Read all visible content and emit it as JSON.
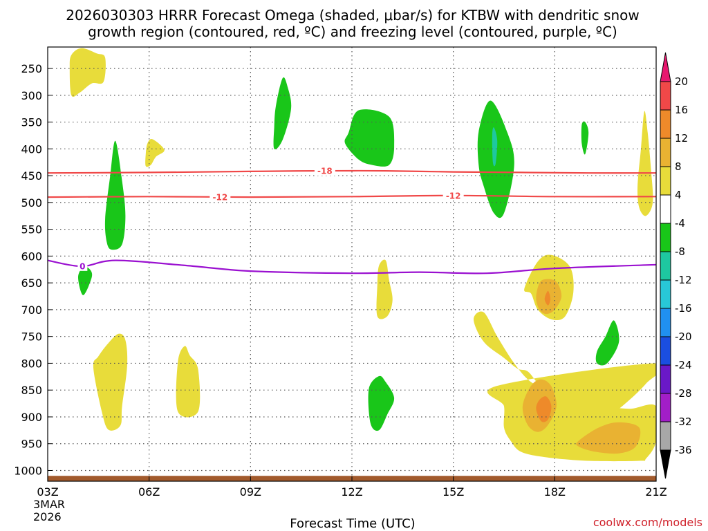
{
  "chart_data": {
    "type": "heatmap",
    "title_line1": "2026030303 HRRR Forecast Omega (shaded, μbar/s) for KTBW with dendritic snow",
    "title_line2": "growth region (contoured, red, ºC) and freezing level (contoured, purple, ºC)",
    "xlabel": "Forecast Time (UTC)",
    "credit": "coolwx.com/models",
    "x_range_hours": [
      0,
      18
    ],
    "y_range_mb": [
      210,
      1020
    ],
    "x_ticks": [
      {
        "hour": 0,
        "label": "03Z"
      },
      {
        "hour": 3,
        "label": "06Z"
      },
      {
        "hour": 6,
        "label": "09Z"
      },
      {
        "hour": 9,
        "label": "12Z"
      },
      {
        "hour": 12,
        "label": "15Z"
      },
      {
        "hour": 15,
        "label": "18Z"
      },
      {
        "hour": 18,
        "label": "21Z"
      }
    ],
    "x_date_lines": [
      "3MAR",
      "2026"
    ],
    "y_ticks": [
      250,
      300,
      350,
      400,
      450,
      500,
      550,
      600,
      650,
      700,
      750,
      800,
      850,
      900,
      950,
      1000
    ],
    "colorbar": {
      "labels": [
        "20",
        "16",
        "12",
        "8",
        "4",
        "-4",
        "-8",
        "-12",
        "-16",
        "-20",
        "-24",
        "-28",
        "-32",
        "-36"
      ],
      "colors": [
        "#e8176f",
        "#f04848",
        "#ee8a2a",
        "#e9b232",
        "#e8dc3a",
        "#ffffff",
        "#19c619",
        "#1ec8a0",
        "#28c8d8",
        "#2090f0",
        "#1a4ee0",
        "#6a18c8",
        "#a21ec8",
        "#a8a8a8",
        "#000000"
      ]
    },
    "contours": [
      {
        "name": "dgz-minus18",
        "label": "-18",
        "color": "#f04848",
        "points": [
          [
            0,
            445
          ],
          [
            3,
            444
          ],
          [
            6,
            442
          ],
          [
            8,
            441
          ],
          [
            10,
            441
          ],
          [
            12,
            443
          ],
          [
            14,
            444
          ],
          [
            16,
            445
          ],
          [
            18,
            445
          ]
        ],
        "labels_at_hours": [
          8.2
        ]
      },
      {
        "name": "dgz-minus12",
        "label": "-12",
        "color": "#f04848",
        "points": [
          [
            0,
            490
          ],
          [
            3,
            489
          ],
          [
            6,
            490
          ],
          [
            9,
            489
          ],
          [
            12,
            487
          ],
          [
            15,
            489
          ],
          [
            18,
            489
          ]
        ],
        "labels_at_hours": [
          5.1,
          12.0
        ]
      },
      {
        "name": "freezing-level",
        "label": "0",
        "color": "#9a10d0",
        "points": [
          [
            0,
            608
          ],
          [
            1,
            619
          ],
          [
            2,
            608
          ],
          [
            4,
            617
          ],
          [
            6,
            628
          ],
          [
            9,
            632
          ],
          [
            11,
            630
          ],
          [
            13,
            632
          ],
          [
            15,
            623
          ],
          [
            18,
            616
          ]
        ],
        "labels_at_hours": [
          1.03
        ]
      }
    ],
    "omega_regions": [
      {
        "value": 4,
        "color": "#e8dc3a",
        "points": [
          [
            0.7,
            300
          ],
          [
            0.95,
            295
          ],
          [
            1.3,
            278
          ],
          [
            1.65,
            275
          ],
          [
            1.7,
            230
          ],
          [
            1.45,
            222
          ],
          [
            1.0,
            212
          ],
          [
            0.7,
            225
          ],
          [
            0.65,
            250
          ]
        ]
      },
      {
        "value": -8,
        "color": "#19c619",
        "points": [
          [
            1.75,
            575
          ],
          [
            1.9,
            588
          ],
          [
            2.2,
            578
          ],
          [
            2.3,
            525
          ],
          [
            2.2,
            460
          ],
          [
            2.0,
            385
          ],
          [
            1.85,
            450
          ],
          [
            1.7,
            530
          ]
        ]
      },
      {
        "value": 4,
        "color": "#e8dc3a",
        "points": [
          [
            2.9,
            432
          ],
          [
            3.05,
            430
          ],
          [
            3.2,
            415
          ],
          [
            3.45,
            402
          ],
          [
            3.1,
            382
          ],
          [
            2.95,
            390
          ],
          [
            2.9,
            410
          ]
        ]
      },
      {
        "value": -8,
        "color": "#19c619",
        "points": [
          [
            1.05,
            673
          ],
          [
            1.3,
            640
          ],
          [
            1.25,
            625
          ],
          [
            1.05,
            620
          ],
          [
            0.9,
            640
          ]
        ]
      },
      {
        "value": 4,
        "color": "#e8dc3a",
        "points": [
          [
            1.35,
            808
          ],
          [
            1.6,
            890
          ],
          [
            1.8,
            924
          ],
          [
            2.15,
            916
          ],
          [
            2.2,
            880
          ],
          [
            2.35,
            805
          ],
          [
            2.3,
            757
          ],
          [
            2.1,
            745
          ],
          [
            1.8,
            762
          ],
          [
            1.5,
            787
          ]
        ]
      },
      {
        "value": 4,
        "color": "#e8dc3a",
        "points": [
          [
            3.85,
            890
          ],
          [
            4.45,
            890
          ],
          [
            4.45,
            812
          ],
          [
            4.2,
            785
          ],
          [
            4.05,
            768
          ],
          [
            3.85,
            798
          ]
        ]
      },
      {
        "value": -8,
        "color": "#19c619",
        "points": [
          [
            6.7,
            400
          ],
          [
            6.95,
            383
          ],
          [
            7.2,
            325
          ],
          [
            7.1,
            285
          ],
          [
            6.95,
            268
          ],
          [
            6.75,
            320
          ],
          [
            6.7,
            360
          ]
        ]
      },
      {
        "value": -8,
        "color": "#19c619",
        "points": [
          [
            8.8,
            390
          ],
          [
            9.2,
            420
          ],
          [
            9.6,
            430
          ],
          [
            10.1,
            430
          ],
          [
            10.25,
            395
          ],
          [
            10.1,
            340
          ],
          [
            9.2,
            328
          ],
          [
            8.9,
            370
          ]
        ]
      },
      {
        "value": 4,
        "color": "#e8dc3a",
        "points": [
          [
            9.75,
            712
          ],
          [
            10.05,
            712
          ],
          [
            10.2,
            682
          ],
          [
            10.1,
            645
          ],
          [
            10.0,
            608
          ],
          [
            9.8,
            618
          ],
          [
            9.75,
            655
          ]
        ]
      },
      {
        "value": -8,
        "color": "#19c619",
        "points": [
          [
            9.55,
            912
          ],
          [
            9.8,
            925
          ],
          [
            10.05,
            895
          ],
          [
            10.25,
            865
          ],
          [
            10.0,
            835
          ],
          [
            9.8,
            824
          ],
          [
            9.5,
            848
          ]
        ]
      },
      {
        "value": -8,
        "color": "#19c619",
        "points": [
          [
            12.75,
            368
          ],
          [
            13.1,
            310
          ],
          [
            13.6,
            370
          ],
          [
            13.8,
            430
          ],
          [
            13.5,
            520
          ],
          [
            13.2,
            520
          ],
          [
            12.9,
            470
          ],
          [
            12.75,
            430
          ]
        ]
      },
      {
        "value": -12,
        "color": "#1ec8a0",
        "points": [
          [
            13.15,
            375
          ],
          [
            13.2,
            360
          ],
          [
            13.3,
            385
          ],
          [
            13.25,
            428
          ],
          [
            13.17,
            425
          ]
        ]
      },
      {
        "value": -8,
        "color": "#19c619",
        "points": [
          [
            15.8,
            355
          ],
          [
            15.9,
            350
          ],
          [
            16.0,
            370
          ],
          [
            15.9,
            410
          ],
          [
            15.8,
            390
          ]
        ]
      },
      {
        "value": 4,
        "color": "#e8dc3a",
        "points": [
          [
            14.1,
            661
          ],
          [
            14.5,
            610
          ],
          [
            14.9,
            598
          ],
          [
            15.45,
            620
          ],
          [
            15.55,
            668
          ],
          [
            15.3,
            713
          ],
          [
            14.9,
            718
          ],
          [
            14.5,
            700
          ],
          [
            14.3,
            670
          ]
        ]
      },
      {
        "value": 8,
        "color": "#e9b232",
        "points": [
          [
            14.45,
            678
          ],
          [
            14.55,
            650
          ],
          [
            14.75,
            643
          ],
          [
            15.05,
            648
          ],
          [
            15.2,
            675
          ],
          [
            15.0,
            700
          ],
          [
            14.75,
            708
          ],
          [
            14.55,
            700
          ]
        ]
      },
      {
        "value": 12,
        "color": "#ee8a2a",
        "points": [
          [
            14.7,
            680
          ],
          [
            14.8,
            665
          ],
          [
            14.87,
            680
          ],
          [
            14.8,
            692
          ]
        ]
      },
      {
        "value": 4,
        "color": "#e8dc3a",
        "points": [
          [
            18,
            800
          ],
          [
            17.7,
            838
          ],
          [
            16.8,
            890
          ],
          [
            16.2,
            910
          ],
          [
            15.2,
            912
          ],
          [
            15.1,
            898
          ],
          [
            14.9,
            870
          ],
          [
            14.5,
            838
          ],
          [
            14.2,
            815
          ],
          [
            13.9,
            810
          ],
          [
            13.5,
            790
          ],
          [
            12.9,
            760
          ],
          [
            12.6,
            718
          ],
          [
            12.9,
            705
          ],
          [
            13.3,
            750
          ],
          [
            13.8,
            800
          ],
          [
            14.3,
            835
          ],
          [
            14.9,
            850
          ],
          [
            15.2,
            870
          ],
          [
            15.7,
            875
          ],
          [
            15.9,
            865
          ],
          [
            16.4,
            878
          ],
          [
            17.2,
            885
          ],
          [
            18,
            880
          ],
          [
            18,
            945
          ],
          [
            17.7,
            978
          ],
          [
            17.5,
            982
          ],
          [
            16.0,
            982
          ],
          [
            14.7,
            975
          ],
          [
            14.0,
            965
          ],
          [
            13.7,
            945
          ],
          [
            13.5,
            920
          ],
          [
            13.5,
            880
          ],
          [
            13.3,
            842
          ]
        ]
      },
      {
        "value": 8,
        "color": "#e9b232",
        "points": [
          [
            14.05,
            880
          ],
          [
            14.3,
            842
          ],
          [
            14.6,
            830
          ],
          [
            14.9,
            843
          ],
          [
            15.05,
            880
          ],
          [
            14.8,
            915
          ],
          [
            14.5,
            928
          ],
          [
            14.2,
            915
          ]
        ]
      },
      {
        "value": 12,
        "color": "#ee8a2a",
        "points": [
          [
            14.45,
            885
          ],
          [
            14.55,
            868
          ],
          [
            14.75,
            862
          ],
          [
            14.9,
            880
          ],
          [
            14.8,
            905
          ],
          [
            14.6,
            908
          ]
        ]
      },
      {
        "value": 8,
        "color": "#e9b232",
        "points": [
          [
            15.7,
            945
          ],
          [
            16.3,
            920
          ],
          [
            16.9,
            910
          ],
          [
            17.5,
            920
          ],
          [
            17.4,
            955
          ],
          [
            16.9,
            968
          ],
          [
            16.2,
            965
          ],
          [
            15.7,
            955
          ]
        ]
      },
      {
        "value": -8,
        "color": "#19c619",
        "points": [
          [
            16.25,
            778
          ],
          [
            16.25,
            800
          ],
          [
            16.55,
            800
          ],
          [
            16.9,
            760
          ],
          [
            16.75,
            720
          ],
          [
            16.5,
            750
          ]
        ]
      },
      {
        "value": 4,
        "color": "#e8dc3a",
        "points": [
          [
            17.5,
            510
          ],
          [
            17.7,
            525
          ],
          [
            17.9,
            500
          ],
          [
            17.85,
            440
          ],
          [
            17.75,
            370
          ],
          [
            17.65,
            330
          ],
          [
            17.55,
            400
          ],
          [
            17.45,
            470
          ]
        ]
      }
    ],
    "terrain_band_mb": [
      1010,
      1020
    ],
    "terrain_color": "#a25a2c"
  }
}
